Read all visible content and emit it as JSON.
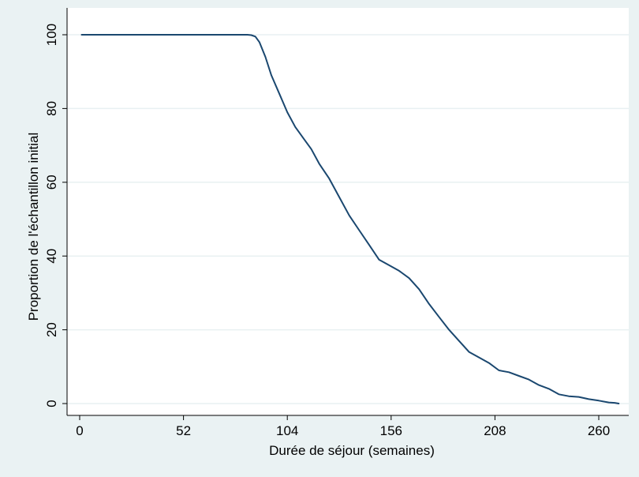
{
  "chart_data": {
    "type": "line",
    "title": "",
    "xlabel": "Durée de séjour (semaines)",
    "ylabel": "Proportion de l'échantillon initial",
    "xlim": [
      0,
      270
    ],
    "ylim": [
      0,
      100
    ],
    "xticks": [
      0,
      52,
      104,
      156,
      208,
      260
    ],
    "yticks": [
      0,
      20,
      40,
      60,
      80,
      100
    ],
    "grid": true,
    "legend": "none",
    "colors": {
      "background": "#eaf2f3",
      "plot_area": "#ffffff",
      "grid": "#e8f0f2",
      "line": "#1a476f"
    },
    "series": [
      {
        "x": [
          1,
          20,
          40,
          60,
          80,
          84,
          86,
          88,
          90,
          93,
          96,
          100,
          104,
          108,
          112,
          116,
          120,
          125,
          130,
          135,
          140,
          145,
          150,
          155,
          160,
          165,
          170,
          175,
          180,
          185,
          190,
          195,
          200,
          205,
          210,
          215,
          220,
          225,
          230,
          235,
          240,
          245,
          250,
          255,
          260,
          265,
          268,
          270
        ],
        "y": [
          100,
          100,
          100,
          100,
          100,
          100,
          99.9,
          99.5,
          98,
          94,
          89,
          84,
          79,
          75,
          72,
          69,
          65,
          61,
          56,
          51,
          47,
          43,
          39,
          37.5,
          36,
          34,
          31,
          27,
          23.5,
          20,
          17,
          14,
          12.5,
          11,
          9,
          8.5,
          7.5,
          6.5,
          5,
          4,
          2.5,
          2,
          1.8,
          1.2,
          0.8,
          0.3,
          0.2,
          0
        ]
      }
    ]
  }
}
